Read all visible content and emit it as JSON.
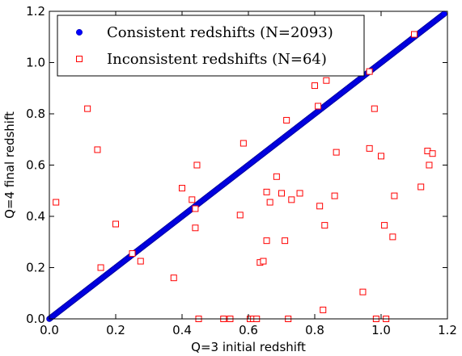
{
  "chart_data": {
    "type": "scatter",
    "xlabel": "Q=3 initial redshift",
    "ylabel": "Q=4 final redshift",
    "xlim": [
      0,
      1.2
    ],
    "ylim": [
      0,
      1.2
    ],
    "xticks": [
      "0.0",
      "0.2",
      "0.4",
      "0.6",
      "0.8",
      "1.0",
      "1.2"
    ],
    "yticks": [
      "0.0",
      "0.2",
      "0.4",
      "0.6",
      "0.8",
      "1.0",
      "1.2"
    ],
    "grid": false,
    "legend_position": "top-left",
    "series": [
      {
        "name": "Consistent redshifts (N=2093)",
        "marker": "filled-circle",
        "color": "#0000ff",
        "line_segments": [
          {
            "from": [
              0.0,
              0.0
            ],
            "to": [
              1.19,
              1.19
            ]
          }
        ]
      },
      {
        "name": "Inconsistent redshifts (N=64)",
        "marker": "open-square",
        "color": "#ff0000",
        "points": [
          [
            0.02,
            0.455
          ],
          [
            0.115,
            0.82
          ],
          [
            0.145,
            0.66
          ],
          [
            0.155,
            0.2
          ],
          [
            0.2,
            0.37
          ],
          [
            0.25,
            0.255
          ],
          [
            0.275,
            0.225
          ],
          [
            0.375,
            0.16
          ],
          [
            0.4,
            0.51
          ],
          [
            0.43,
            0.465
          ],
          [
            0.44,
            0.43
          ],
          [
            0.44,
            0.355
          ],
          [
            0.445,
            0.6
          ],
          [
            0.45,
            0.0
          ],
          [
            0.525,
            0.0
          ],
          [
            0.545,
            0.0
          ],
          [
            0.575,
            0.405
          ],
          [
            0.585,
            0.685
          ],
          [
            0.605,
            0.0
          ],
          [
            0.615,
            0.0
          ],
          [
            0.625,
            0.0
          ],
          [
            0.635,
            0.22
          ],
          [
            0.645,
            0.225
          ],
          [
            0.655,
            0.495
          ],
          [
            0.655,
            0.305
          ],
          [
            0.665,
            0.455
          ],
          [
            0.685,
            0.555
          ],
          [
            0.7,
            0.49
          ],
          [
            0.71,
            0.305
          ],
          [
            0.715,
            0.775
          ],
          [
            0.72,
            0.0
          ],
          [
            0.73,
            0.465
          ],
          [
            0.755,
            0.49
          ],
          [
            0.8,
            0.91
          ],
          [
            0.81,
            0.83
          ],
          [
            0.815,
            0.44
          ],
          [
            0.825,
            0.035
          ],
          [
            0.83,
            0.365
          ],
          [
            0.835,
            0.93
          ],
          [
            0.86,
            0.48
          ],
          [
            0.865,
            0.65
          ],
          [
            0.945,
            0.105
          ],
          [
            0.965,
            0.665
          ],
          [
            0.965,
            0.965
          ],
          [
            0.98,
            0.82
          ],
          [
            0.985,
            0.0
          ],
          [
            1.0,
            0.635
          ],
          [
            1.01,
            0.365
          ],
          [
            1.015,
            0.0
          ],
          [
            1.035,
            0.32
          ],
          [
            1.04,
            0.48
          ],
          [
            1.1,
            1.11
          ],
          [
            1.12,
            0.515
          ],
          [
            1.14,
            0.655
          ],
          [
            1.145,
            0.6
          ],
          [
            1.155,
            0.645
          ]
        ]
      }
    ]
  }
}
